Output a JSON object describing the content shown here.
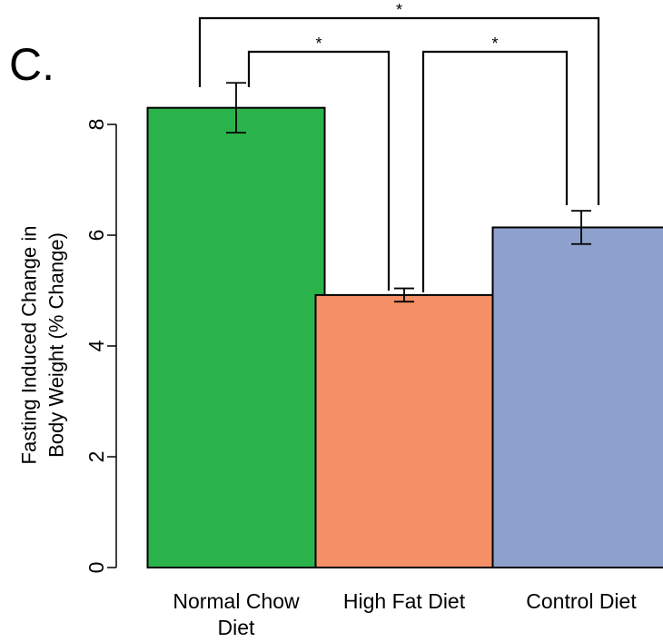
{
  "panel_label": "C.",
  "chart_data": {
    "type": "bar",
    "categories": [
      [
        "Normal Chow",
        "Diet"
      ],
      [
        "High Fat Diet"
      ],
      [
        "Control Diet"
      ]
    ],
    "values": [
      8.3,
      4.92,
      6.14
    ],
    "error": [
      0.45,
      0.12,
      0.3
    ],
    "colors": [
      "#2bb34b",
      "#f48f66",
      "#8ea1cc"
    ],
    "ylabel": [
      "Fasting Induced Change in",
      "Body Weight (% Change)"
    ],
    "xlabel": "",
    "yticks": [
      0,
      2,
      4,
      6,
      8
    ],
    "ylim": [
      0,
      8.0
    ],
    "significance": [
      {
        "from": 0,
        "to": 1,
        "label": "*"
      },
      {
        "from": 1,
        "to": 2,
        "label": "*"
      },
      {
        "from": 0,
        "to": 2,
        "label": "*"
      }
    ]
  }
}
